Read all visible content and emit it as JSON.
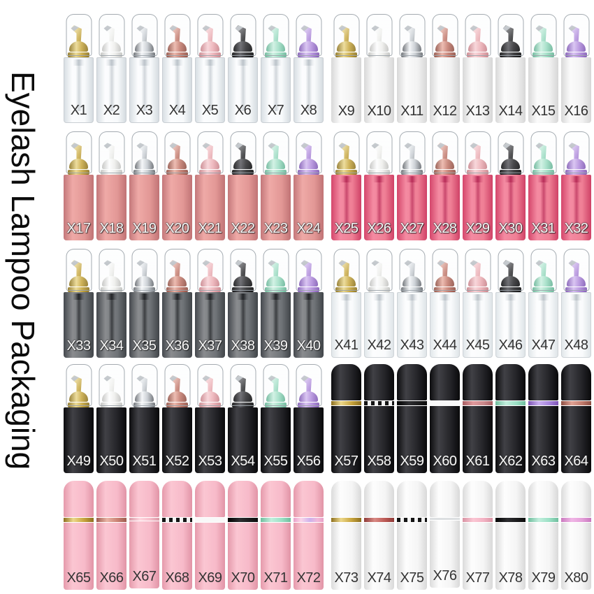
{
  "title": "Eyelash Lampoo Packaging",
  "palette": {
    "pump_colors": {
      "gold": "#c9a83f",
      "white": "#f0f0ed",
      "silver": "#c6cbd0",
      "rosegold": "#c4796b",
      "pink": "#eeb0b6",
      "black": "#2b2b2d",
      "mint": "#9edec4",
      "purple": "#b28ddd"
    },
    "body_colors": {
      "clear": "#eef2f4",
      "whitesolid": "#f2f2f2",
      "salmon": "#e29795",
      "hotpink": "#ee7390",
      "smoke": "#6f7377",
      "clearfrost": "#f3f5f6",
      "black": "#1b1b1e",
      "pinkop": "#f7bac9",
      "whiteop": "#f4f4f4"
    },
    "ring_colors": {
      "gold": "#c7a43e",
      "chk": [
        "#141414",
        "#f2f2f2"
      ],
      "black": "#0c0c0c",
      "white": "#f8f8f8",
      "dustyrose": "#c9888b",
      "mint": "#9be0c5",
      "purple": "#a684dd",
      "copper": "#c07a6c",
      "rosegold": "#ca8274",
      "lightpink": "#f6bcc9",
      "irid": "#f3b9d9",
      "red": "#bc5a55",
      "silverline": "#dcdfe1",
      "pink": "#f3b3c4",
      "orchid": "#e49fd9"
    }
  },
  "rows": [
    {
      "name": "row-1",
      "bottles": [
        {
          "label": "X1",
          "body": "clear",
          "pump": "gold",
          "label_style": "dark"
        },
        {
          "label": "X2",
          "body": "clear",
          "pump": "white",
          "label_style": "dark"
        },
        {
          "label": "X3",
          "body": "clear",
          "pump": "silver",
          "label_style": "dark"
        },
        {
          "label": "X4",
          "body": "clear",
          "pump": "rosegold",
          "label_style": "dark"
        },
        {
          "label": "X5",
          "body": "clear",
          "pump": "pink",
          "label_style": "dark"
        },
        {
          "label": "X6",
          "body": "clear",
          "pump": "black",
          "label_style": "dark"
        },
        {
          "label": "X7",
          "body": "clear",
          "pump": "mint",
          "label_style": "dark"
        },
        {
          "label": "X8",
          "body": "clear",
          "pump": "purple",
          "label_style": "dark"
        },
        {
          "label": "X9",
          "body": "whitesolid",
          "pump": "gold",
          "label_style": "dark"
        },
        {
          "label": "X10",
          "body": "whitesolid",
          "pump": "white",
          "label_style": "dark"
        },
        {
          "label": "X11",
          "body": "whitesolid",
          "pump": "silver",
          "label_style": "dark"
        },
        {
          "label": "X12",
          "body": "whitesolid",
          "pump": "rosegold",
          "label_style": "dark"
        },
        {
          "label": "X13",
          "body": "whitesolid",
          "pump": "pink",
          "label_style": "dark"
        },
        {
          "label": "X14",
          "body": "whitesolid",
          "pump": "black",
          "label_style": "dark"
        },
        {
          "label": "X15",
          "body": "whitesolid",
          "pump": "mint",
          "label_style": "dark"
        },
        {
          "label": "X16",
          "body": "whitesolid",
          "pump": "purple",
          "label_style": "dark"
        }
      ]
    },
    {
      "name": "row-2",
      "bottles": [
        {
          "label": "X17",
          "body": "salmon",
          "pump": "gold",
          "label_style": "light"
        },
        {
          "label": "X18",
          "body": "salmon",
          "pump": "white",
          "label_style": "light"
        },
        {
          "label": "X19",
          "body": "salmon",
          "pump": "silver",
          "label_style": "light"
        },
        {
          "label": "X20",
          "body": "salmon",
          "pump": "rosegold",
          "label_style": "light"
        },
        {
          "label": "X21",
          "body": "salmon",
          "pump": "pink",
          "label_style": "light"
        },
        {
          "label": "X22",
          "body": "salmon",
          "pump": "black",
          "label_style": "light"
        },
        {
          "label": "X23",
          "body": "salmon",
          "pump": "mint",
          "label_style": "light"
        },
        {
          "label": "X24",
          "body": "salmon",
          "pump": "purple",
          "label_style": "light"
        },
        {
          "label": "X25",
          "body": "hotpink",
          "pump": "gold",
          "label_style": "light"
        },
        {
          "label": "X26",
          "body": "hotpink",
          "pump": "white",
          "label_style": "light"
        },
        {
          "label": "X27",
          "body": "hotpink",
          "pump": "silver",
          "label_style": "light"
        },
        {
          "label": "X28",
          "body": "hotpink",
          "pump": "rosegold",
          "label_style": "light"
        },
        {
          "label": "X29",
          "body": "hotpink",
          "pump": "pink",
          "label_style": "light"
        },
        {
          "label": "X30",
          "body": "hotpink",
          "pump": "black",
          "label_style": "light"
        },
        {
          "label": "X31",
          "body": "hotpink",
          "pump": "mint",
          "label_style": "light"
        },
        {
          "label": "X32",
          "body": "hotpink",
          "pump": "purple",
          "label_style": "light"
        }
      ]
    },
    {
      "name": "row-3",
      "bottles": [
        {
          "label": "X33",
          "body": "smoke",
          "pump": "gold",
          "label_style": "light"
        },
        {
          "label": "X34",
          "body": "smoke",
          "pump": "white",
          "label_style": "light"
        },
        {
          "label": "X35",
          "body": "smoke",
          "pump": "silver",
          "label_style": "light"
        },
        {
          "label": "X36",
          "body": "smoke",
          "pump": "rosegold",
          "label_style": "light"
        },
        {
          "label": "X37",
          "body": "smoke",
          "pump": "pink",
          "label_style": "light"
        },
        {
          "label": "X38",
          "body": "smoke",
          "pump": "black",
          "label_style": "light"
        },
        {
          "label": "X39",
          "body": "smoke",
          "pump": "mint",
          "label_style": "light"
        },
        {
          "label": "X40",
          "body": "smoke",
          "pump": "purple",
          "label_style": "light"
        },
        {
          "label": "X41",
          "body": "clearfrost",
          "pump": "gold",
          "label_style": "dark"
        },
        {
          "label": "X42",
          "body": "clearfrost",
          "pump": "white",
          "label_style": "dark"
        },
        {
          "label": "X43",
          "body": "clearfrost",
          "pump": "silver",
          "label_style": "dark"
        },
        {
          "label": "X44",
          "body": "clearfrost",
          "pump": "rosegold",
          "label_style": "dark"
        },
        {
          "label": "X45",
          "body": "clearfrost",
          "pump": "pink",
          "label_style": "dark"
        },
        {
          "label": "X46",
          "body": "clearfrost",
          "pump": "black",
          "label_style": "dark"
        },
        {
          "label": "X47",
          "body": "clearfrost",
          "pump": "mint",
          "label_style": "dark"
        },
        {
          "label": "X48",
          "body": "clearfrost",
          "pump": "purple",
          "label_style": "dark"
        }
      ]
    },
    {
      "name": "row-4",
      "bottles": [
        {
          "label": "X49",
          "body": "black",
          "pump": "gold",
          "label_style": "light"
        },
        {
          "label": "X50",
          "body": "black",
          "pump": "white",
          "label_style": "light"
        },
        {
          "label": "X51",
          "body": "black",
          "pump": "silver",
          "label_style": "light"
        },
        {
          "label": "X52",
          "body": "black",
          "pump": "rosegold",
          "label_style": "light"
        },
        {
          "label": "X53",
          "body": "black",
          "pump": "pink",
          "label_style": "light"
        },
        {
          "label": "X54",
          "body": "black",
          "pump": "black",
          "label_style": "light"
        },
        {
          "label": "X55",
          "body": "black",
          "pump": "mint",
          "label_style": "light"
        },
        {
          "label": "X56",
          "body": "black",
          "pump": "purple",
          "label_style": "light"
        },
        {
          "label": "X57",
          "body": "black",
          "cap": "black",
          "ring": "gold",
          "label_style": "light"
        },
        {
          "label": "X58",
          "body": "black",
          "cap": "black",
          "ring": "chk",
          "label_style": "light"
        },
        {
          "label": "X59",
          "body": "black",
          "cap": "black",
          "ring": "black",
          "label_style": "light"
        },
        {
          "label": "X60",
          "body": "black",
          "cap": "black",
          "ring": "white",
          "label_style": "light"
        },
        {
          "label": "X61",
          "body": "black",
          "cap": "black",
          "ring": "dustyrose",
          "label_style": "light"
        },
        {
          "label": "X62",
          "body": "black",
          "cap": "black",
          "ring": "mint",
          "label_style": "light"
        },
        {
          "label": "X63",
          "body": "black",
          "cap": "black",
          "ring": "purple",
          "label_style": "light"
        },
        {
          "label": "X64",
          "body": "black",
          "cap": "black",
          "ring": "copper",
          "label_style": "light"
        }
      ]
    },
    {
      "name": "row-5",
      "bottles": [
        {
          "label": "X65",
          "body": "pinkop",
          "cap": "pinkop",
          "ring": "gold",
          "label_style": "dark"
        },
        {
          "label": "X66",
          "body": "pinkop",
          "cap": "pinkop",
          "ring": "rosegold",
          "label_style": "dark"
        },
        {
          "label": "X67",
          "body": "pinkop",
          "cap": "pinkop",
          "ring": "lightpink",
          "label_style": "dark"
        },
        {
          "label": "X68",
          "body": "pinkop",
          "cap": "pinkop",
          "ring": "chk",
          "label_style": "dark"
        },
        {
          "label": "X69",
          "body": "pinkop",
          "cap": "pinkop",
          "ring": "white",
          "label_style": "dark"
        },
        {
          "label": "X70",
          "body": "pinkop",
          "cap": "pinkop",
          "ring": "black",
          "label_style": "dark"
        },
        {
          "label": "X71",
          "body": "pinkop",
          "cap": "pinkop",
          "ring": "mint",
          "label_style": "dark"
        },
        {
          "label": "X72",
          "body": "pinkop",
          "cap": "pinkop",
          "ring": "irid",
          "label_style": "dark"
        },
        {
          "label": "X73",
          "body": "whiteop",
          "cap": "whiteop",
          "ring": "gold",
          "label_style": "dark"
        },
        {
          "label": "X74",
          "body": "whiteop",
          "cap": "whiteop",
          "ring": "red",
          "label_style": "dark"
        },
        {
          "label": "X75",
          "body": "whiteop",
          "cap": "whiteop",
          "ring": "chk",
          "label_style": "dark"
        },
        {
          "label": "X76",
          "body": "whiteop",
          "cap": "whiteop",
          "ring": "silverline",
          "label_style": "dark"
        },
        {
          "label": "X77",
          "body": "whiteop",
          "cap": "whiteop",
          "ring": "pink",
          "label_style": "dark"
        },
        {
          "label": "X78",
          "body": "whiteop",
          "cap": "whiteop",
          "ring": "black",
          "label_style": "dark"
        },
        {
          "label": "X79",
          "body": "whiteop",
          "cap": "whiteop",
          "ring": "mint",
          "label_style": "dark"
        },
        {
          "label": "X80",
          "body": "whiteop",
          "cap": "whiteop",
          "ring": "orchid",
          "label_style": "dark"
        }
      ]
    }
  ]
}
